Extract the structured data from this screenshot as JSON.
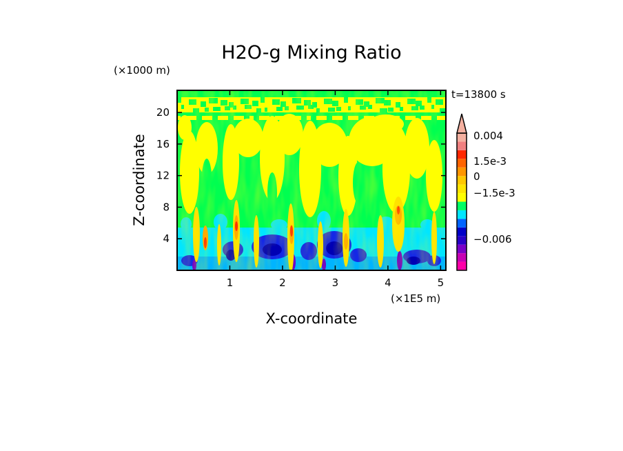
{
  "chart_data": {
    "type": "heatmap",
    "title": "H2O-g Mixing Ratio",
    "time_label": "t=13800 s",
    "xlabel": "X-coordinate",
    "ylabel": "Z-coordinate",
    "x_unit": "(×1E5 m)",
    "y_unit": "(×1000 m)",
    "xlim": [
      0,
      5.1
    ],
    "ylim": [
      0,
      22.8
    ],
    "x_ticks": [
      1,
      2,
      3,
      4,
      5
    ],
    "y_ticks": [
      4,
      8,
      12,
      16,
      20
    ],
    "colorbar": {
      "colors": [
        "#ff00a8",
        "#c800b4",
        "#7a00c8",
        "#2800c8",
        "#0000c8",
        "#0064ff",
        "#00e6ff",
        "#00ff64",
        "#ffff00",
        "#ffe600",
        "#ffc800",
        "#ff9600",
        "#ff6400",
        "#ff2800",
        "#f08080",
        "#f4b0a0"
      ],
      "labels": [
        "0.004",
        "1.5e-3",
        "0",
        "−1.5e-3",
        "−0.006"
      ],
      "extend": "max"
    }
  }
}
